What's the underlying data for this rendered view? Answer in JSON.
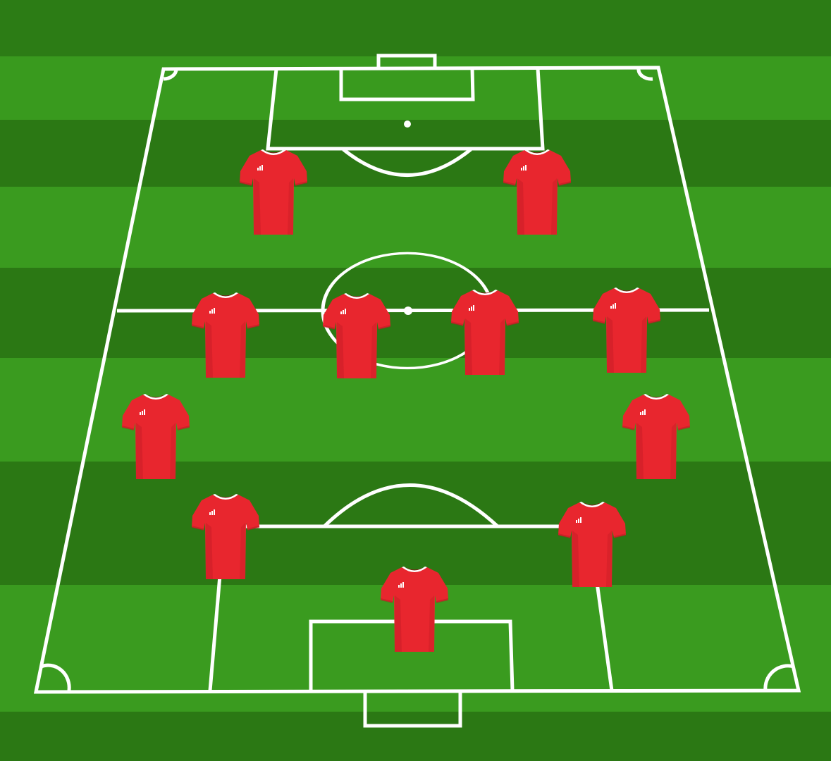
{
  "pitch": {
    "stripe_light": "#3a9a1f",
    "stripe_dark": "#2b7a14",
    "line_color": "#ffffff",
    "background": "#2e7d18"
  },
  "formation": {
    "kit": {
      "shirt_color": "#e8262e",
      "shirt_shadow": "#b81a22",
      "collar_color": "#ffffff",
      "logo": "adidas-logo-icon"
    },
    "players": [
      {
        "id": "forward-left"
      },
      {
        "id": "forward-right"
      },
      {
        "id": "midfielder-1"
      },
      {
        "id": "midfielder-2"
      },
      {
        "id": "midfielder-3"
      },
      {
        "id": "midfielder-4"
      },
      {
        "id": "wing-back-left"
      },
      {
        "id": "wing-back-right"
      },
      {
        "id": "centre-back-left"
      },
      {
        "id": "centre-back-right"
      },
      {
        "id": "goalkeeper"
      }
    ]
  }
}
